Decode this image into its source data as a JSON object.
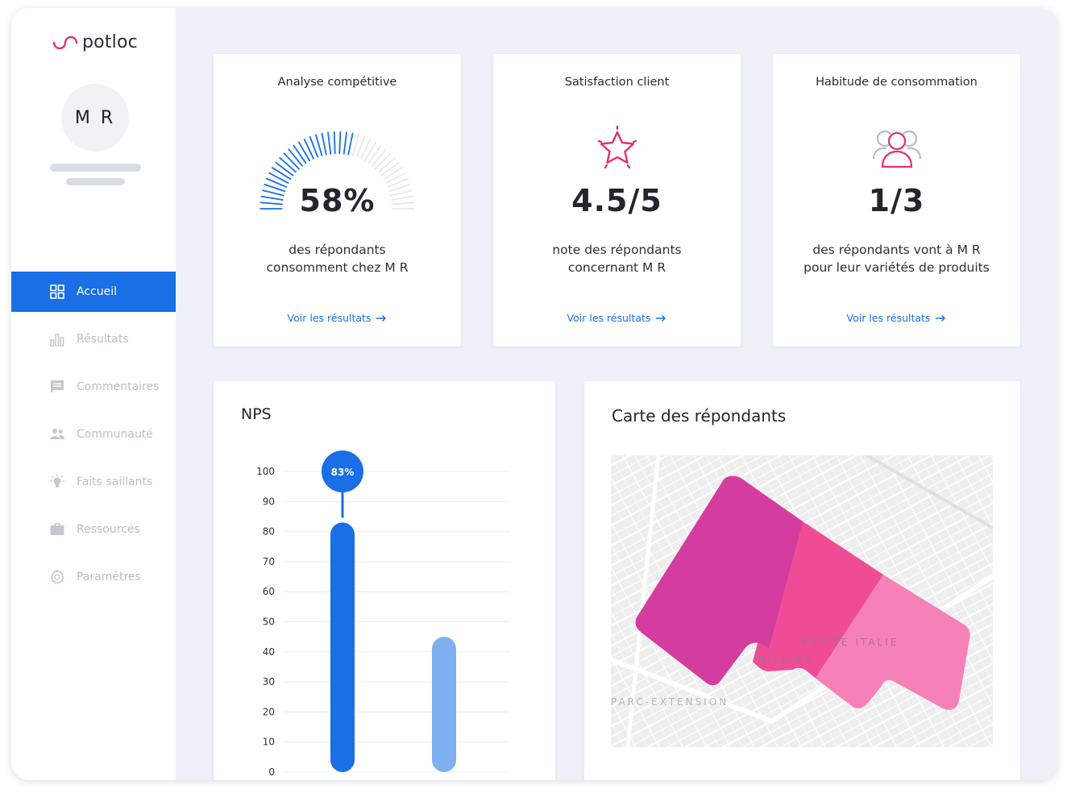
{
  "app": {
    "logo_text": "potloc",
    "brand_color": "#e5306f",
    "accent_color": "#1a6ee6"
  },
  "user": {
    "initials": "M R"
  },
  "sidebar": {
    "items": [
      {
        "label": "Accueil",
        "icon": "grid-icon",
        "active": true
      },
      {
        "label": "Résultats",
        "icon": "bar-chart-icon",
        "active": false
      },
      {
        "label": "Commentaires",
        "icon": "comment-icon",
        "active": false
      },
      {
        "label": "Communauté",
        "icon": "people-icon",
        "active": false
      },
      {
        "label": "Faits saillants",
        "icon": "lightbulb-icon",
        "active": false
      },
      {
        "label": "Ressources",
        "icon": "briefcase-icon",
        "active": false
      },
      {
        "label": "Paramètres",
        "icon": "gear-icon",
        "active": false
      }
    ]
  },
  "cards": [
    {
      "title": "Analyse compétitive",
      "value": "58%",
      "gauge_fraction": 0.58,
      "desc_line1": "des répondants",
      "desc_line2": "consomment chez M R",
      "link": "Voir les résultats",
      "icon": "gauge-icon"
    },
    {
      "title": "Satisfaction client",
      "value": "4.5/5",
      "desc_line1": "note des répondants",
      "desc_line2": "concernant M R",
      "link": "Voir les résultats",
      "icon": "star-icon"
    },
    {
      "title": "Habitude de consommation",
      "value": "1/3",
      "desc_line1": "des répondants vont à M R",
      "desc_line2": "pour leur variétés de produits",
      "link": "Voir les résultats",
      "icon": "group-icon"
    }
  ],
  "nps": {
    "title": "NPS",
    "bubble_label": "83%",
    "chart_data": {
      "type": "bar",
      "ylim": [
        0,
        100
      ],
      "yticks": [
        "0",
        "10",
        "20",
        "30",
        "40",
        "50",
        "60",
        "70",
        "80",
        "90",
        "100"
      ],
      "values": [
        83,
        45
      ],
      "colors": [
        "#1a6ee6",
        "#7fb0f0"
      ]
    }
  },
  "map": {
    "title": "Carte des répondants",
    "labels": [
      "PETITE ITALIE",
      "MILE-EX",
      "PARC-EXTENSION"
    ],
    "zone_colors": [
      "#d43c9f",
      "#ef4c95",
      "#f57ab3"
    ]
  }
}
